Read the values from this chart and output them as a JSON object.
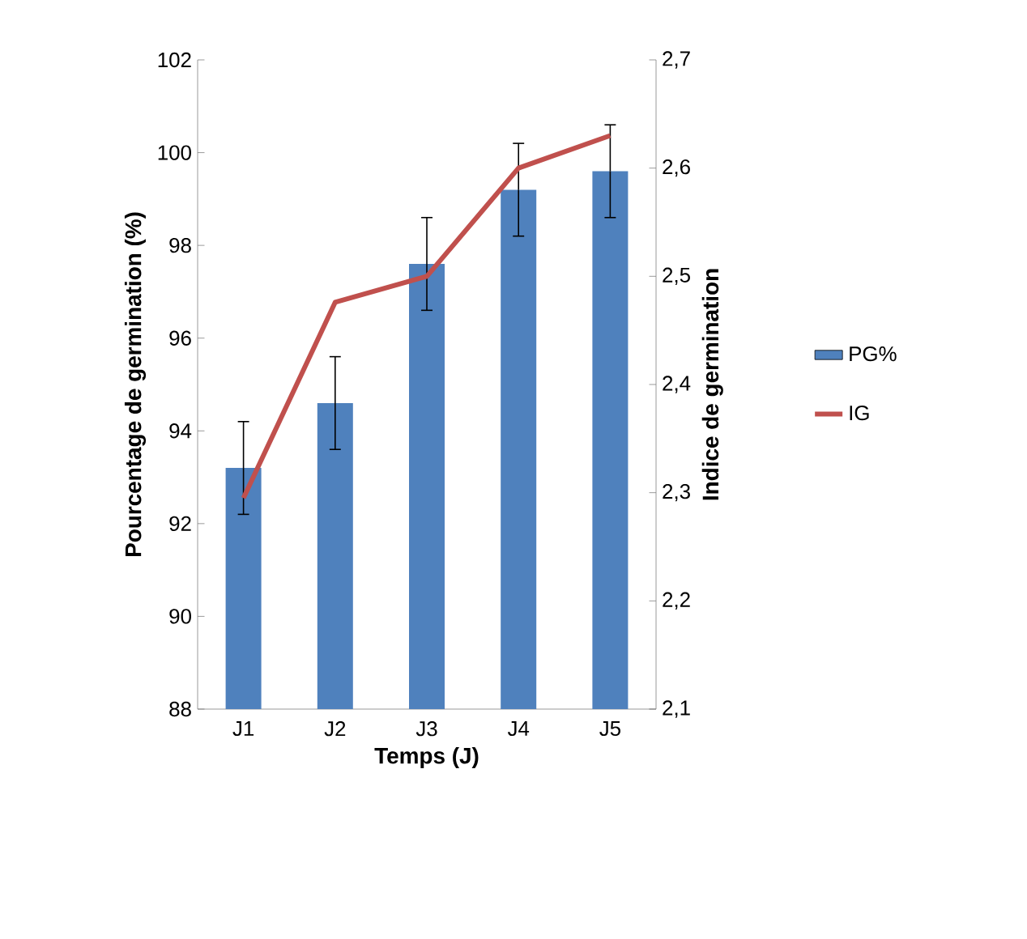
{
  "chart_data": {
    "type": "bar",
    "categories": [
      "J1",
      "J2",
      "J3",
      "J4",
      "J5"
    ],
    "xlabel": "Temps (J)",
    "ylabel": "Pourcentage de germination (%)",
    "y2label": "Indice de germination",
    "series": [
      {
        "name": "PG%",
        "color": "#4f81bd",
        "values": [
          93.2,
          94.6,
          97.6,
          99.2,
          99.6
        ],
        "errors": [
          1,
          1,
          1,
          1,
          1
        ]
      },
      {
        "name": "IG",
        "type": "line",
        "color": "#c0504d",
        "axis": "y2",
        "values": [
          2.295,
          2.476,
          2.5,
          2.6,
          2.63
        ]
      }
    ],
    "ylim": [
      88,
      102
    ],
    "yticks": [
      88,
      90,
      92,
      94,
      96,
      98,
      100,
      102
    ],
    "y2lim": [
      2.1,
      2.7
    ],
    "y2ticks": [
      {
        "value": 2.1,
        "label": "2,1"
      },
      {
        "value": 2.2,
        "label": "2,2"
      },
      {
        "value": 2.3,
        "label": "2,3"
      },
      {
        "value": 2.4,
        "label": "2,4"
      },
      {
        "value": 2.5,
        "label": "2,5"
      },
      {
        "value": 2.6,
        "label": "2,6"
      },
      {
        "value": 2.7,
        "label": "2,7"
      }
    ],
    "legend": "right",
    "grid": false
  }
}
